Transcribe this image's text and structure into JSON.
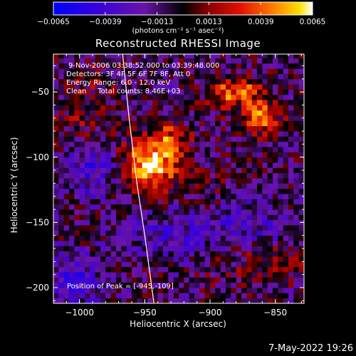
{
  "chart_data": {
    "type": "heatmap",
    "title": "Reconstructed RHESSI Image",
    "xlabel": "Heliocentric X (arcsec)",
    "ylabel": "Heliocentric Y (arcsec)",
    "xlim": [
      -1020,
      -828
    ],
    "ylim": [
      -212,
      -21
    ],
    "x_ticks": [
      -1000,
      -950,
      -900,
      -850
    ],
    "x_tick_labels": [
      "−1000",
      "−950",
      "−900",
      "−850"
    ],
    "y_ticks": [
      -50,
      -100,
      -150,
      -200
    ],
    "y_tick_labels": [
      "−50",
      "−100",
      "−150",
      "−200"
    ],
    "colorbar": {
      "range": [
        -0.0065,
        0.0065
      ],
      "ticks": [
        -0.0065,
        -0.0039,
        -0.0013,
        0.0013,
        0.0039,
        0.0065
      ],
      "tick_labels": [
        "−0.0065",
        "−0.0039",
        "−0.0013",
        "0.0013",
        "0.0039",
        "0.0065"
      ],
      "unit_label": "(photons cm⁻² s⁻¹ asec⁻²)"
    },
    "sources": [
      {
        "x": -945,
        "y": -105,
        "sx": 14,
        "sy": 14,
        "value": 0.0066
      },
      {
        "x": -930,
        "y": -85,
        "sx": 10,
        "sy": 10,
        "value": 0.003
      },
      {
        "x": -862,
        "y": -68,
        "sx": 10,
        "sy": 9,
        "value": 0.0052
      },
      {
        "x": -888,
        "y": -50,
        "sx": 10,
        "sy": 8,
        "value": 0.0045
      },
      {
        "x": -870,
        "y": -48,
        "sx": 8,
        "sy": 6,
        "value": 0.003
      },
      {
        "x": -860,
        "y": -180,
        "sx": 30,
        "sy": 10,
        "value": 0.0015
      },
      {
        "x": -900,
        "y": -120,
        "sx": 14,
        "sy": 10,
        "value": 0.0008
      },
      {
        "x": -1000,
        "y": -70,
        "sx": 14,
        "sy": 14,
        "value": 0.0015
      },
      {
        "x": -990,
        "y": -110,
        "sx": 12,
        "sy": 14,
        "value": -0.003
      },
      {
        "x": -930,
        "y": -160,
        "sx": 22,
        "sy": 12,
        "value": -0.0025
      },
      {
        "x": -870,
        "y": -150,
        "sx": 18,
        "sy": 14,
        "value": -0.002
      },
      {
        "x": -1005,
        "y": -195,
        "sx": 18,
        "sy": 14,
        "value": -0.0028
      },
      {
        "x": -990,
        "y": -40,
        "sx": 14,
        "sy": 12,
        "value": 0.0012
      }
    ],
    "limb_arc": [
      [
        -967,
        -21
      ],
      [
        -962,
        -70
      ],
      [
        -956,
        -120
      ],
      [
        -950,
        -160
      ],
      [
        -943,
        -212
      ]
    ]
  },
  "annotations": {
    "time": "9-Nov-2006 03:38:52.000 to 03:39:48.000",
    "detectors": "Detectors: 3F 4F 5F 6F 7F 8F, Att 0",
    "energy": "Energy Range: 6.0 - 12.0 keV",
    "clean": "Clean     Total counts: 8.46E+03",
    "peak": "Position of Peak = [-945,-109]"
  },
  "footer": {
    "date": "7-May-2022 19:26"
  }
}
